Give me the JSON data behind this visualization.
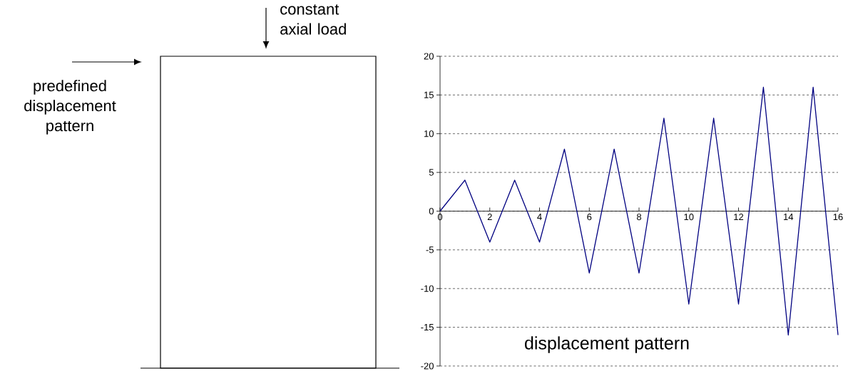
{
  "chart_data": {
    "type": "line",
    "title": "displacement pattern",
    "annotations": [
      "constant axial load",
      "predefined displacement pattern"
    ],
    "x": [
      0,
      1,
      2,
      3,
      4,
      5,
      6,
      7,
      8,
      9,
      10,
      11,
      12,
      13,
      14,
      15,
      16
    ],
    "series": [
      {
        "color": "#000080",
        "values": [
          0,
          4,
          -4,
          4,
          -4,
          8,
          -8,
          8,
          -8,
          12,
          -12,
          12,
          -12,
          16,
          -16,
          16,
          -16
        ]
      }
    ],
    "xlim": [
      0,
      16
    ],
    "xticks": [
      0,
      2,
      4,
      6,
      8,
      10,
      12,
      14,
      16
    ],
    "ylim": [
      -20,
      20
    ],
    "yticks": [
      -20,
      -15,
      -10,
      -5,
      0,
      5,
      10,
      15,
      20
    ],
    "grid": "y",
    "marker": "none",
    "line_style": "solid"
  }
}
